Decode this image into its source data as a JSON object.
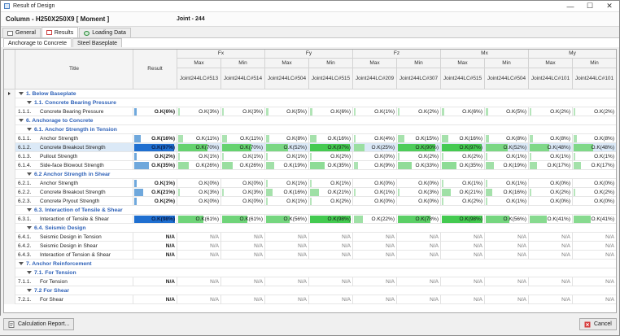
{
  "window": {
    "title": "Result of Design",
    "minimize": "—",
    "maximize": "☐",
    "close": "✕"
  },
  "header": {
    "member": "Column - H250X250X9 [ Moment ]",
    "joint": "Joint - 244"
  },
  "main_tabs": [
    {
      "label": "General",
      "icon": "document-icon"
    },
    {
      "label": "Results",
      "icon": "results-icon"
    },
    {
      "label": "Loading Data",
      "icon": "loading-data-icon"
    }
  ],
  "sub_tabs": [
    {
      "label": "Anchorage to Concrete"
    },
    {
      "label": "Steel Baseplate"
    }
  ],
  "columns": {
    "title": "Title",
    "result": "Result",
    "groups": [
      {
        "name": "Fx",
        "sub": [
          {
            "kind": "Max",
            "joint": "Joint244",
            "lc": "LC#513"
          },
          {
            "kind": "Min",
            "joint": "Joint244",
            "lc": "LC#514"
          }
        ]
      },
      {
        "name": "Fy",
        "sub": [
          {
            "kind": "Max",
            "joint": "Joint244",
            "lc": "LC#504"
          },
          {
            "kind": "Min",
            "joint": "Joint244",
            "lc": "LC#515"
          }
        ]
      },
      {
        "name": "Fz",
        "sub": [
          {
            "kind": "Max",
            "joint": "Joint244",
            "lc": "LC#209"
          },
          {
            "kind": "Min",
            "joint": "Joint244",
            "lc": "LC#307"
          }
        ]
      },
      {
        "name": "Mx",
        "sub": [
          {
            "kind": "Max",
            "joint": "Joint244",
            "lc": "LC#515"
          },
          {
            "kind": "Min",
            "joint": "Joint244",
            "lc": "LC#504"
          }
        ]
      },
      {
        "name": "My",
        "sub": [
          {
            "kind": "Max",
            "joint": "Joint244",
            "lc": "LC#101"
          },
          {
            "kind": "Min",
            "joint": "Joint244",
            "lc": "LC#101"
          }
        ]
      }
    ]
  },
  "colors": {
    "low": "#b8e6bd",
    "high": "#41c94e",
    "result_bar": "#6fa8dc",
    "result_sel": "#1f6fd0",
    "section_text": "#2f62b8"
  },
  "rows": [
    {
      "type": "section",
      "level": 1,
      "label": "1. Below Baseplate"
    },
    {
      "type": "section",
      "level": 2,
      "label": "1.1. Concrete Bearing Pressure"
    },
    {
      "type": "item",
      "num": "1.1.1.",
      "label": "Concrete Bearing Pressure",
      "result": "O.K(6%)",
      "pct": 6,
      "values": [
        "O.K(3%)",
        "O.K(3%)",
        "O.K(5%)",
        "O.K(6%)",
        "O.K(1%)",
        "O.K(2%)",
        "O.K(6%)",
        "O.K(5%)",
        "O.K(2%)",
        "O.K(2%)"
      ],
      "pcts": [
        3,
        3,
        5,
        6,
        1,
        2,
        6,
        5,
        2,
        2
      ]
    },
    {
      "type": "section",
      "level": 1,
      "label": "6. Anchorage to Concrete"
    },
    {
      "type": "section",
      "level": 2,
      "label": "6.1. Anchor Strength in Tension"
    },
    {
      "type": "item",
      "num": "6.1.1.",
      "label": "Anchor Strength",
      "result": "O.K(16%)",
      "pct": 16,
      "values": [
        "O.K(11%)",
        "O.K(11%)",
        "O.K(8%)",
        "O.K(16%)",
        "O.K(4%)",
        "O.K(15%)",
        "O.K(16%)",
        "O.K(8%)",
        "O.K(8%)",
        "O.K(8%)"
      ],
      "pcts": [
        11,
        11,
        8,
        16,
        4,
        15,
        16,
        8,
        8,
        8
      ]
    },
    {
      "type": "item",
      "num": "6.1.2.",
      "label": "Concrete Breakout Strength",
      "result": "O.K(97%)",
      "pct": 97,
      "selected": true,
      "values": [
        "O.K(70%)",
        "O.K(70%)",
        "O.K(52%)",
        "O.K(97%)",
        "O.K(25%)",
        "O.K(90%)",
        "O.K(97%)",
        "O.K(52%)",
        "O.K(48%)",
        "O.K(48%)"
      ],
      "pcts": [
        70,
        70,
        52,
        97,
        25,
        90,
        97,
        52,
        48,
        48
      ]
    },
    {
      "type": "item",
      "num": "6.1.3.",
      "label": "Pullout Strength",
      "result": "O.K(2%)",
      "pct": 2,
      "values": [
        "O.K(1%)",
        "O.K(1%)",
        "O.K(1%)",
        "O.K(2%)",
        "O.K(0%)",
        "O.K(2%)",
        "O.K(2%)",
        "O.K(1%)",
        "O.K(1%)",
        "O.K(1%)"
      ],
      "pcts": [
        1,
        1,
        1,
        2,
        0,
        2,
        2,
        1,
        1,
        1
      ]
    },
    {
      "type": "item",
      "num": "6.1.4.",
      "label": "Side-face Blowout Strength",
      "result": "O.K(35%)",
      "pct": 35,
      "values": [
        "O.K(26%)",
        "O.K(26%)",
        "O.K(19%)",
        "O.K(35%)",
        "O.K(9%)",
        "O.K(33%)",
        "O.K(35%)",
        "O.K(19%)",
        "O.K(17%)",
        "O.K(17%)"
      ],
      "pcts": [
        26,
        26,
        19,
        35,
        9,
        33,
        35,
        19,
        17,
        17
      ]
    },
    {
      "type": "section",
      "level": 2,
      "label": "6.2 Anchor Strength in Shear"
    },
    {
      "type": "item",
      "num": "6.2.1.",
      "label": "Anchor Strength",
      "result": "O.K(1%)",
      "pct": 1,
      "values": [
        "O.K(0%)",
        "O.K(0%)",
        "O.K(1%)",
        "O.K(1%)",
        "O.K(0%)",
        "O.K(0%)",
        "O.K(1%)",
        "O.K(1%)",
        "O.K(0%)",
        "O.K(0%)"
      ],
      "pcts": [
        0,
        0,
        1,
        1,
        0,
        0,
        1,
        1,
        0,
        0
      ]
    },
    {
      "type": "item",
      "num": "6.2.2.",
      "label": "Concrete Breakout Strength",
      "result": "O.K(21%)",
      "pct": 21,
      "values": [
        "O.K(3%)",
        "O.K(3%)",
        "O.K(16%)",
        "O.K(21%)",
        "O.K(1%)",
        "O.K(3%)",
        "O.K(21%)",
        "O.K(16%)",
        "O.K(2%)",
        "O.K(2%)"
      ],
      "pcts": [
        3,
        3,
        16,
        21,
        1,
        3,
        21,
        16,
        2,
        2
      ]
    },
    {
      "type": "item",
      "num": "6.2.3.",
      "label": "Concrete Pryout Strength",
      "result": "O.K(2%)",
      "pct": 2,
      "values": [
        "O.K(0%)",
        "O.K(0%)",
        "O.K(1%)",
        "O.K(2%)",
        "O.K(0%)",
        "O.K(0%)",
        "O.K(2%)",
        "O.K(1%)",
        "O.K(0%)",
        "O.K(0%)"
      ],
      "pcts": [
        0,
        0,
        1,
        2,
        0,
        0,
        2,
        1,
        0,
        0
      ]
    },
    {
      "type": "section",
      "level": 2,
      "label": "6.3. Interaction of Tensile & Shear"
    },
    {
      "type": "item",
      "num": "6.3.1.",
      "label": "Interaction of Tensile & Shear",
      "result": "O.K(98%)",
      "pct": 98,
      "strong": true,
      "values": [
        "O.K(61%)",
        "O.K(61%)",
        "O.K(56%)",
        "O.K(98%)",
        "O.K(22%)",
        "O.K(78%)",
        "O.K(98%)",
        "O.K(56%)",
        "O.K(41%)",
        "O.K(41%)"
      ],
      "pcts": [
        61,
        61,
        56,
        98,
        22,
        78,
        98,
        56,
        41,
        41
      ]
    },
    {
      "type": "section",
      "level": 2,
      "label": "6.4. Seismic Design"
    },
    {
      "type": "item",
      "num": "6.4.1.",
      "label": "Seismic Design in Tension",
      "result": "N/A",
      "pct": 0,
      "values": [
        "N/A",
        "N/A",
        "N/A",
        "N/A",
        "N/A",
        "N/A",
        "N/A",
        "N/A",
        "N/A",
        "N/A"
      ],
      "pcts": [
        0,
        0,
        0,
        0,
        0,
        0,
        0,
        0,
        0,
        0
      ]
    },
    {
      "type": "item",
      "num": "6.4.2.",
      "label": "Seismic Design in Shear",
      "result": "N/A",
      "pct": 0,
      "values": [
        "N/A",
        "N/A",
        "N/A",
        "N/A",
        "N/A",
        "N/A",
        "N/A",
        "N/A",
        "N/A",
        "N/A"
      ],
      "pcts": [
        0,
        0,
        0,
        0,
        0,
        0,
        0,
        0,
        0,
        0
      ]
    },
    {
      "type": "item",
      "num": "6.4.3.",
      "label": "Interaction of Tension & Shear",
      "result": "N/A",
      "pct": 0,
      "values": [
        "N/A",
        "N/A",
        "N/A",
        "N/A",
        "N/A",
        "N/A",
        "N/A",
        "N/A",
        "N/A",
        "N/A"
      ],
      "pcts": [
        0,
        0,
        0,
        0,
        0,
        0,
        0,
        0,
        0,
        0
      ]
    },
    {
      "type": "section",
      "level": 1,
      "label": "7. Anchor Reinforcement"
    },
    {
      "type": "section",
      "level": 2,
      "label": "7.1. For Tension"
    },
    {
      "type": "item",
      "num": "7.1.1.",
      "label": "For Tension",
      "result": "N/A",
      "pct": 0,
      "values": [
        "N/A",
        "N/A",
        "N/A",
        "N/A",
        "N/A",
        "N/A",
        "N/A",
        "N/A",
        "N/A",
        "N/A"
      ],
      "pcts": [
        0,
        0,
        0,
        0,
        0,
        0,
        0,
        0,
        0,
        0
      ]
    },
    {
      "type": "section",
      "level": 2,
      "label": "7.2 For Shear"
    },
    {
      "type": "item",
      "num": "7.2.1.",
      "label": "For Shear",
      "result": "N/A",
      "pct": 0,
      "values": [
        "N/A",
        "N/A",
        "N/A",
        "N/A",
        "N/A",
        "N/A",
        "N/A",
        "N/A",
        "N/A",
        "N/A"
      ],
      "pcts": [
        0,
        0,
        0,
        0,
        0,
        0,
        0,
        0,
        0,
        0
      ]
    }
  ],
  "footer": {
    "report_label": "Calculation Report...",
    "cancel_label": "Cancel"
  }
}
